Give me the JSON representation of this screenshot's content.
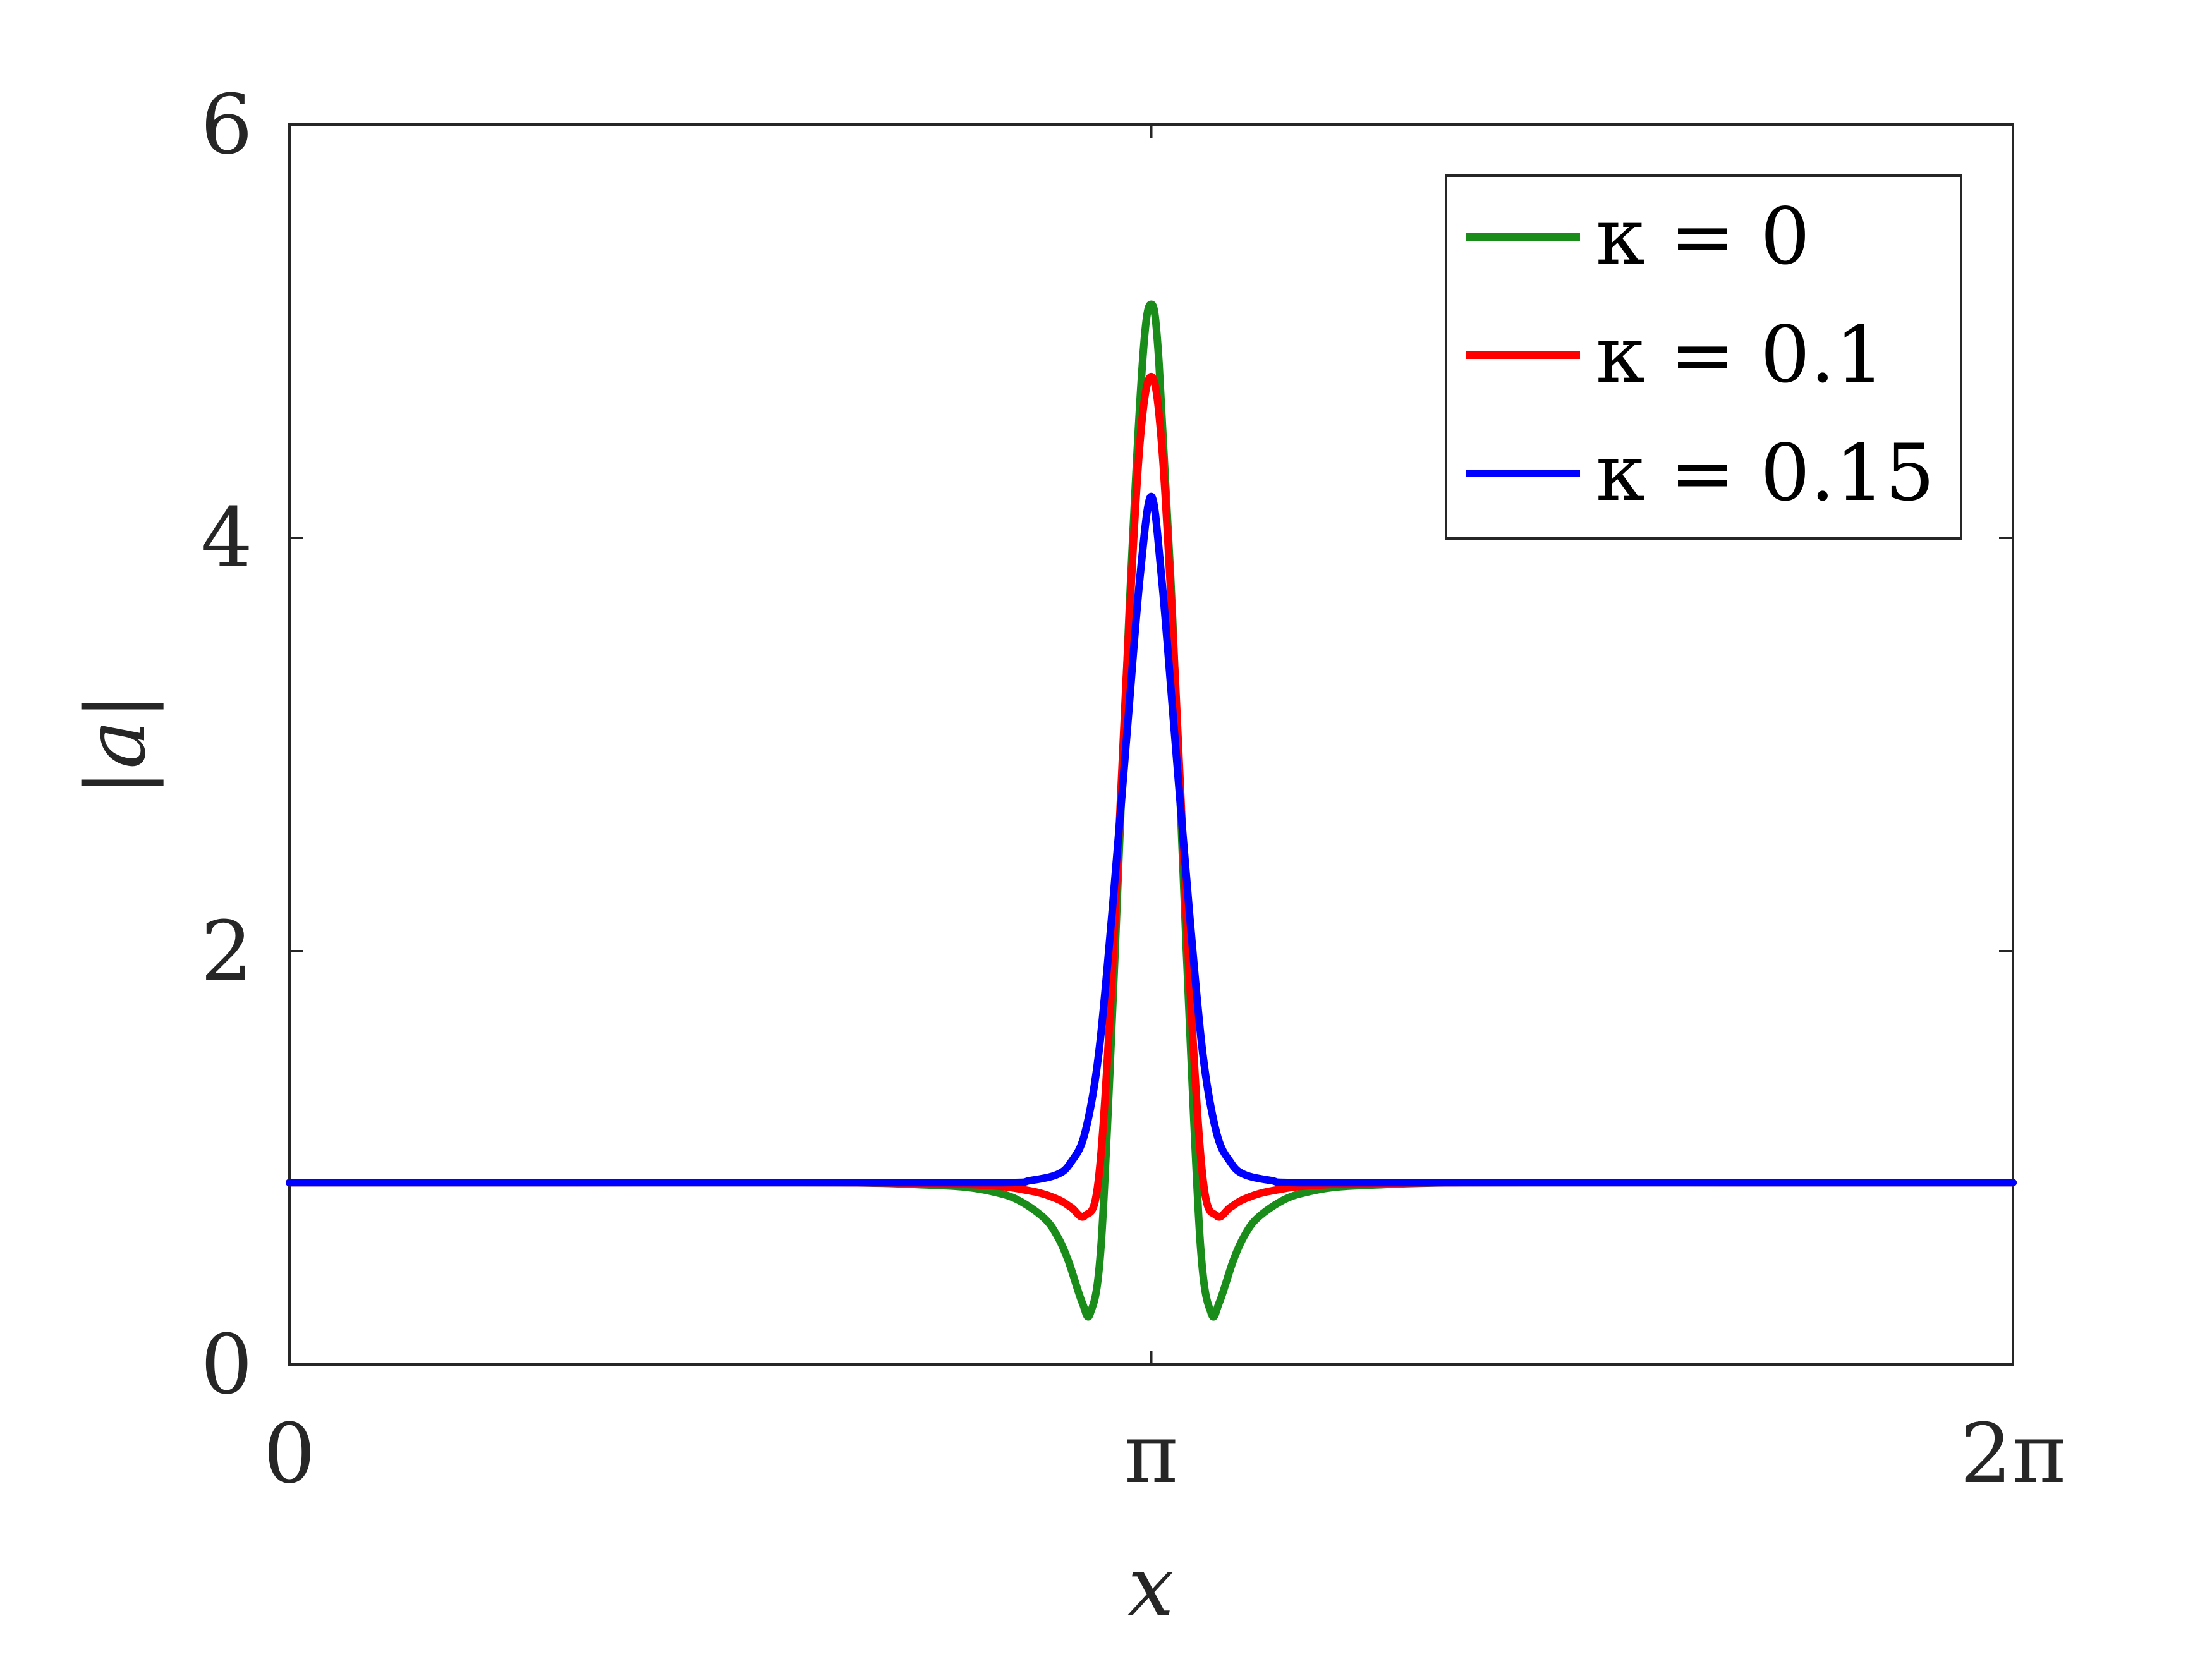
{
  "chart_data": {
    "type": "line",
    "xlabel": "x",
    "ylabel": "|a|",
    "xlim": [
      0,
      6.2832
    ],
    "ylim": [
      0,
      6
    ],
    "xticks": [
      {
        "value": 0,
        "label": "0"
      },
      {
        "value": 3.1416,
        "label": "π"
      },
      {
        "value": 6.2832,
        "label": "2π"
      }
    ],
    "yticks": [
      {
        "value": 0,
        "label": "0"
      },
      {
        "value": 2,
        "label": "2"
      },
      {
        "value": 4,
        "label": "4"
      },
      {
        "value": 6,
        "label": "6"
      }
    ],
    "grid": false,
    "legend_position": "top-right",
    "series": [
      {
        "name": "κ = 0",
        "color": "#1a8c1a",
        "x": [
          0,
          1.0,
          2.0,
          2.3,
          2.45,
          2.55,
          2.65,
          2.75,
          2.8,
          2.84,
          2.89,
          2.92,
          2.96,
          3.01,
          3.06,
          3.11,
          3.1416,
          3.17,
          3.22,
          3.27,
          3.32,
          3.36,
          3.39,
          3.44,
          3.48,
          3.53,
          3.63,
          3.73,
          3.83,
          3.98,
          4.28,
          5.28,
          6.2832
        ],
        "y": [
          0.88,
          0.88,
          0.88,
          0.87,
          0.86,
          0.84,
          0.8,
          0.71,
          0.62,
          0.5,
          0.3,
          0.25,
          0.6,
          2.0,
          3.6,
          4.85,
          5.13,
          4.85,
          3.6,
          2.0,
          0.6,
          0.25,
          0.3,
          0.5,
          0.62,
          0.71,
          0.8,
          0.84,
          0.86,
          0.87,
          0.88,
          0.88,
          0.88
        ]
      },
      {
        "name": "κ = 0.1",
        "color": "#ff0000",
        "x": [
          0,
          1.0,
          2.0,
          2.5,
          2.7,
          2.8,
          2.85,
          2.9,
          2.95,
          3.0,
          3.05,
          3.1,
          3.1416,
          3.18,
          3.23,
          3.28,
          3.33,
          3.38,
          3.43,
          3.48,
          3.58,
          3.78,
          4.28,
          5.28,
          6.2832
        ],
        "y": [
          0.88,
          0.88,
          0.88,
          0.87,
          0.84,
          0.8,
          0.76,
          0.72,
          0.9,
          1.9,
          3.3,
          4.45,
          4.78,
          4.45,
          3.3,
          1.9,
          0.9,
          0.72,
          0.76,
          0.8,
          0.84,
          0.87,
          0.88,
          0.88,
          0.88
        ]
      },
      {
        "name": "κ = 0.15",
        "color": "#0000ff",
        "x": [
          0,
          1.0,
          2.0,
          2.6,
          2.7,
          2.8,
          2.85,
          2.9,
          2.95,
          3.0,
          3.05,
          3.1,
          3.1416,
          3.18,
          3.23,
          3.28,
          3.33,
          3.38,
          3.43,
          3.48,
          3.58,
          3.68,
          4.28,
          5.28,
          6.2832
        ],
        "y": [
          0.88,
          0.88,
          0.88,
          0.88,
          0.89,
          0.92,
          0.98,
          1.12,
          1.5,
          2.2,
          3.0,
          3.8,
          4.2,
          3.8,
          3.0,
          2.2,
          1.5,
          1.12,
          0.98,
          0.92,
          0.89,
          0.88,
          0.88,
          0.88,
          0.88
        ]
      }
    ]
  }
}
